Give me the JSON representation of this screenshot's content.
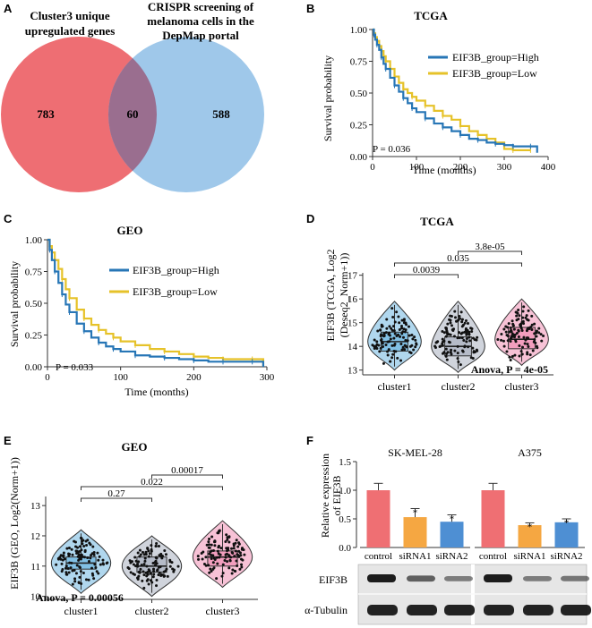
{
  "panels": {
    "a": "A",
    "b": "B",
    "c": "C",
    "d": "D",
    "e": "E",
    "f": "F"
  },
  "venn": {
    "left_label_line1": "Cluster3 unique",
    "left_label_line2": "upregulated genes",
    "right_label_line1": "CRISPR screening of",
    "right_label_line2": "melanoma cells in the",
    "right_label_line3": "DepMap portal",
    "left_only": "783",
    "overlap": "60",
    "right_only": "588",
    "colors": {
      "left": "#ee6e73",
      "right": "#9fc8ea",
      "overlap": "#9a6e8f"
    }
  },
  "chart_data": [
    {
      "id": "km_tcga",
      "type": "line",
      "title": "TCGA",
      "xlabel": "Time (months)",
      "ylabel": "Survival probability",
      "xlim": [
        0,
        400
      ],
      "ylim": [
        0,
        1
      ],
      "xticks": [
        "0",
        "100",
        "200",
        "300",
        "400"
      ],
      "yticks": [
        "0.00",
        "0.25",
        "0.50",
        "0.75",
        "1.00"
      ],
      "annotation": "P = 0.036",
      "series": [
        {
          "name": "EIF3B_group=High",
          "color": "#2776b6",
          "x": [
            0,
            3,
            6,
            10,
            15,
            20,
            25,
            30,
            40,
            50,
            60,
            70,
            80,
            90,
            100,
            120,
            140,
            160,
            180,
            200,
            220,
            240,
            260,
            280,
            300,
            320,
            340,
            360,
            375
          ],
          "y": [
            1.0,
            0.96,
            0.92,
            0.88,
            0.84,
            0.78,
            0.73,
            0.69,
            0.62,
            0.56,
            0.51,
            0.46,
            0.42,
            0.38,
            0.35,
            0.3,
            0.26,
            0.23,
            0.2,
            0.17,
            0.14,
            0.13,
            0.11,
            0.1,
            0.09,
            0.08,
            0.08,
            0.08,
            0.03
          ]
        },
        {
          "name": "EIF3B_group=Low",
          "color": "#e6c229",
          "x": [
            0,
            3,
            6,
            10,
            15,
            20,
            25,
            30,
            40,
            50,
            60,
            70,
            80,
            90,
            100,
            120,
            140,
            160,
            180,
            200,
            220,
            240,
            260,
            280,
            300,
            320,
            340,
            360
          ],
          "y": [
            1.0,
            0.97,
            0.94,
            0.91,
            0.87,
            0.83,
            0.79,
            0.75,
            0.69,
            0.63,
            0.58,
            0.53,
            0.5,
            0.47,
            0.44,
            0.4,
            0.36,
            0.32,
            0.29,
            0.24,
            0.2,
            0.17,
            0.14,
            0.11,
            0.06,
            0.05,
            0.05,
            0.05
          ]
        }
      ],
      "legend": "right"
    },
    {
      "id": "km_geo",
      "type": "line",
      "title": "GEO",
      "xlabel": "Time (months)",
      "ylabel": "Survival probability",
      "xlim": [
        0,
        300
      ],
      "ylim": [
        0,
        1
      ],
      "xticks": [
        "0",
        "100",
        "200",
        "300"
      ],
      "yticks": [
        "0.00",
        "0.25",
        "0.50",
        "0.75",
        "1.00"
      ],
      "annotation": "P = 0.033",
      "series": [
        {
          "name": "EIF3B_group=High",
          "color": "#2776b6",
          "x": [
            0,
            3,
            6,
            10,
            15,
            20,
            25,
            30,
            40,
            50,
            60,
            70,
            80,
            90,
            100,
            120,
            140,
            160,
            180,
            200,
            220,
            240,
            260,
            280,
            295
          ],
          "y": [
            1.0,
            0.92,
            0.84,
            0.75,
            0.66,
            0.57,
            0.49,
            0.43,
            0.34,
            0.28,
            0.23,
            0.19,
            0.16,
            0.14,
            0.12,
            0.09,
            0.08,
            0.07,
            0.06,
            0.05,
            0.04,
            0.04,
            0.04,
            0.04,
            0.0
          ]
        },
        {
          "name": "EIF3B_group=Low",
          "color": "#e6c229",
          "x": [
            0,
            3,
            6,
            10,
            15,
            20,
            25,
            30,
            40,
            50,
            60,
            70,
            80,
            90,
            100,
            120,
            140,
            160,
            180,
            200,
            220,
            240,
            260,
            280,
            295
          ],
          "y": [
            1.0,
            0.95,
            0.9,
            0.84,
            0.77,
            0.69,
            0.61,
            0.54,
            0.45,
            0.38,
            0.33,
            0.29,
            0.26,
            0.23,
            0.2,
            0.17,
            0.14,
            0.12,
            0.1,
            0.08,
            0.07,
            0.06,
            0.06,
            0.06,
            0.0
          ]
        }
      ],
      "legend": "right"
    },
    {
      "id": "violin_tcga",
      "type": "box",
      "title": "TCGA",
      "ylabel_line1": "EIF3B (TCGA, Log2",
      "ylabel_line2": "(Deseq2_Norm+1))",
      "ylim": [
        12.8,
        17.1
      ],
      "yticks": [
        13,
        14,
        15,
        16,
        17
      ],
      "categories": [
        "cluster1",
        "cluster2",
        "cluster3"
      ],
      "colors": [
        "#6fb6e0",
        "#a9b0bf",
        "#f08fb4"
      ],
      "box": [
        {
          "min": 13.0,
          "q1": 13.8,
          "median": 14.2,
          "q3": 14.6,
          "max": 15.9
        },
        {
          "min": 12.9,
          "q1": 13.6,
          "median": 14.0,
          "q3": 14.4,
          "max": 15.9
        },
        {
          "min": 13.2,
          "q1": 13.9,
          "median": 14.3,
          "q3": 14.8,
          "max": 16.0
        }
      ],
      "comparisons": [
        {
          "pair": [
            1,
            2
          ],
          "p": "0.0039"
        },
        {
          "pair": [
            1,
            3
          ],
          "p": "0.035"
        },
        {
          "pair": [
            2,
            3
          ],
          "p": "3.8e-05"
        }
      ],
      "annotation": "Anova, P = 4e-05"
    },
    {
      "id": "violin_geo",
      "type": "box",
      "title": "GEO",
      "ylabel": "EIF3B (GEO, Log2(Norm+1))",
      "ylim": [
        9.9,
        13.3
      ],
      "yticks": [
        10,
        11,
        12,
        13
      ],
      "categories": [
        "cluster1",
        "cluster2",
        "cluster3"
      ],
      "colors": [
        "#6fb6e0",
        "#a9b0bf",
        "#f08fb4"
      ],
      "box": [
        {
          "min": 10.1,
          "q1": 10.9,
          "median": 11.1,
          "q3": 11.3,
          "max": 12.2
        },
        {
          "min": 10.0,
          "q1": 10.8,
          "median": 11.0,
          "q3": 11.3,
          "max": 12.0
        },
        {
          "min": 10.3,
          "q1": 11.0,
          "median": 11.3,
          "q3": 11.5,
          "max": 12.5
        }
      ],
      "comparisons": [
        {
          "pair": [
            1,
            2
          ],
          "p": "0.27"
        },
        {
          "pair": [
            1,
            3
          ],
          "p": "0.022"
        },
        {
          "pair": [
            2,
            3
          ],
          "p": "0.00017"
        }
      ],
      "annotation": "Anova, P = 0.00056"
    },
    {
      "id": "bar_expr",
      "type": "bar",
      "ylabel_line1": "Relative expression",
      "ylabel_line2": "of EIF3B",
      "ylim": [
        0,
        1.5
      ],
      "yticks": [
        "0.0",
        "0.5",
        "1.0",
        "1.5"
      ],
      "groups": [
        {
          "title": "SK-MEL-28",
          "categories": [
            "control",
            "siRNA1",
            "siRNA2"
          ],
          "values": [
            1.0,
            0.53,
            0.45
          ],
          "errors": [
            0.12,
            0.15,
            0.12
          ],
          "sig": [
            "",
            "*",
            "*"
          ]
        },
        {
          "title": "A375",
          "categories": [
            "control",
            "siRNA1",
            "siRNA2"
          ],
          "values": [
            1.0,
            0.39,
            0.44
          ],
          "errors": [
            0.12,
            0.04,
            0.06
          ],
          "sig": [
            "",
            "*",
            "*"
          ]
        }
      ],
      "colors": [
        "#ef6f73",
        "#f5a742",
        "#4e8fd3"
      ]
    }
  ],
  "blot": {
    "row1": "EIF3B",
    "row2": "α-Tubulin"
  }
}
